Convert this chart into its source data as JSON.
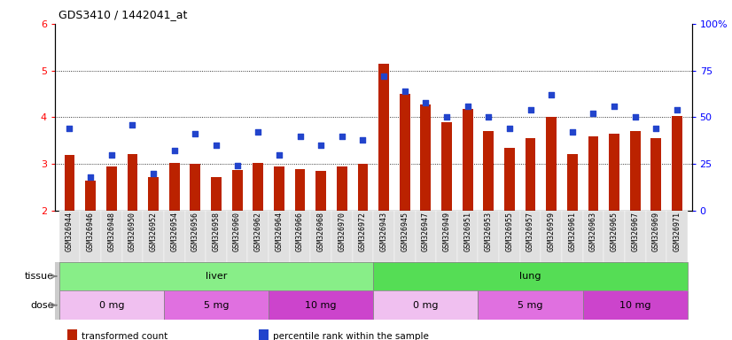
{
  "title": "GDS3410 / 1442041_at",
  "samples": [
    "GSM326944",
    "GSM326946",
    "GSM326948",
    "GSM326950",
    "GSM326952",
    "GSM326954",
    "GSM326956",
    "GSM326958",
    "GSM326960",
    "GSM326962",
    "GSM326964",
    "GSM326966",
    "GSM326968",
    "GSM326970",
    "GSM326972",
    "GSM326943",
    "GSM326945",
    "GSM326947",
    "GSM326949",
    "GSM326951",
    "GSM326953",
    "GSM326955",
    "GSM326957",
    "GSM326959",
    "GSM326961",
    "GSM326963",
    "GSM326965",
    "GSM326967",
    "GSM326969",
    "GSM326971"
  ],
  "transformed_count": [
    3.2,
    2.65,
    2.95,
    3.22,
    2.72,
    3.02,
    3.0,
    2.72,
    2.88,
    3.02,
    2.95,
    2.9,
    2.85,
    2.95,
    3.0,
    5.15,
    4.5,
    4.28,
    3.9,
    4.18,
    3.7,
    3.35,
    3.55,
    4.0,
    3.22,
    3.6,
    3.65,
    3.7,
    3.55,
    4.02
  ],
  "percentile_rank": [
    44,
    18,
    30,
    46,
    20,
    32,
    41,
    35,
    24,
    42,
    30,
    40,
    35,
    40,
    38,
    72,
    64,
    58,
    50,
    56,
    50,
    44,
    54,
    62,
    42,
    52,
    56,
    50,
    44,
    54
  ],
  "bar_color": "#bb2200",
  "dot_color": "#2244cc",
  "ylim_left": [
    2,
    6
  ],
  "ylim_right": [
    0,
    100
  ],
  "yticks_left": [
    2,
    3,
    4,
    5,
    6
  ],
  "yticks_right": [
    0,
    25,
    50,
    75,
    100
  ],
  "ytick_right_labels": [
    "0",
    "25",
    "50",
    "75",
    "100%"
  ],
  "grid_values": [
    3,
    4,
    5
  ],
  "tissue_groups": [
    {
      "label": "liver",
      "start": 0,
      "end": 15,
      "color": "#88ee88"
    },
    {
      "label": "lung",
      "start": 15,
      "end": 30,
      "color": "#55dd55"
    }
  ],
  "dose_groups": [
    {
      "label": "0 mg",
      "start": 0,
      "end": 5,
      "color": "#f0c0f0"
    },
    {
      "label": "5 mg",
      "start": 5,
      "end": 10,
      "color": "#e070e0"
    },
    {
      "label": "10 mg",
      "start": 10,
      "end": 15,
      "color": "#cc44cc"
    },
    {
      "label": "0 mg",
      "start": 15,
      "end": 20,
      "color": "#f0c0f0"
    },
    {
      "label": "5 mg",
      "start": 20,
      "end": 25,
      "color": "#e070e0"
    },
    {
      "label": "10 mg",
      "start": 25,
      "end": 30,
      "color": "#cc44cc"
    }
  ],
  "legend_items": [
    {
      "label": "transformed count",
      "color": "#bb2200"
    },
    {
      "label": "percentile rank within the sample",
      "color": "#2244cc"
    }
  ],
  "bar_width": 0.5,
  "label_fontsize": 8,
  "tick_fontsize": 6,
  "axis_label_color_left": "red",
  "axis_label_color_right": "blue"
}
